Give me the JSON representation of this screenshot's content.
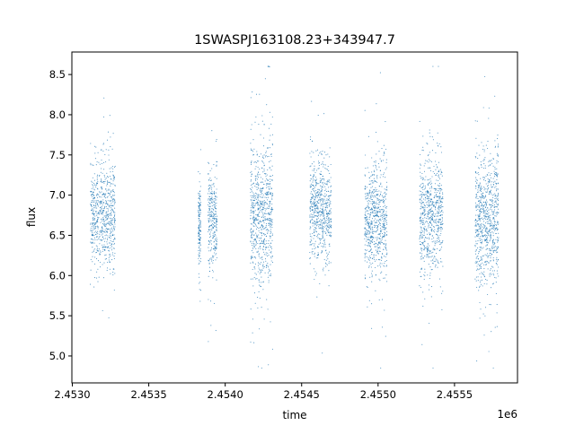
{
  "chart_data": {
    "type": "scatter",
    "title": "1SWASPJ163108.23+343947.7",
    "xlabel": "time",
    "ylabel": "flux",
    "x_offset_label": "1e6",
    "xlim": [
      2452997,
      2455912
    ],
    "ylim": [
      4.665,
      8.78
    ],
    "x_ticks": [
      2453000,
      2453500,
      2454000,
      2454500,
      2455000,
      2455500
    ],
    "x_tick_labels": [
      "2.4530",
      "2.4535",
      "2.4540",
      "2.4545",
      "2.4550",
      "2.4555"
    ],
    "y_ticks": [
      5.0,
      5.5,
      6.0,
      6.5,
      7.0,
      7.5,
      8.0,
      8.5
    ],
    "y_tick_labels": [
      "5.0",
      "5.5",
      "6.0",
      "6.5",
      "7.0",
      "7.5",
      "8.0",
      "8.5"
    ],
    "grid": false,
    "marker_color": "#1f77b4",
    "observing_seasons": [
      {
        "t_start": 2453118,
        "t_end": 2453282,
        "flux_mean": 6.75,
        "flux_std": 0.32,
        "n": 700
      },
      {
        "t_start": 2453824,
        "t_end": 2453841,
        "flux_mean": 6.65,
        "flux_std": 0.3,
        "n": 150
      },
      {
        "t_start": 2453888,
        "t_end": 2453947,
        "flux_mean": 6.7,
        "flux_std": 0.3,
        "n": 300
      },
      {
        "t_start": 2454165,
        "t_end": 2454312,
        "flux_mean": 6.75,
        "flux_std": 0.45,
        "n": 750
      },
      {
        "t_start": 2454553,
        "t_end": 2454694,
        "flux_mean": 6.8,
        "flux_std": 0.3,
        "n": 650
      },
      {
        "t_start": 2454912,
        "t_end": 2455059,
        "flux_mean": 6.7,
        "flux_std": 0.32,
        "n": 700
      },
      {
        "t_start": 2455271,
        "t_end": 2455424,
        "flux_mean": 6.75,
        "flux_std": 0.35,
        "n": 700
      },
      {
        "t_start": 2455635,
        "t_end": 2455788,
        "flux_mean": 6.7,
        "flux_std": 0.4,
        "n": 800
      }
    ]
  }
}
